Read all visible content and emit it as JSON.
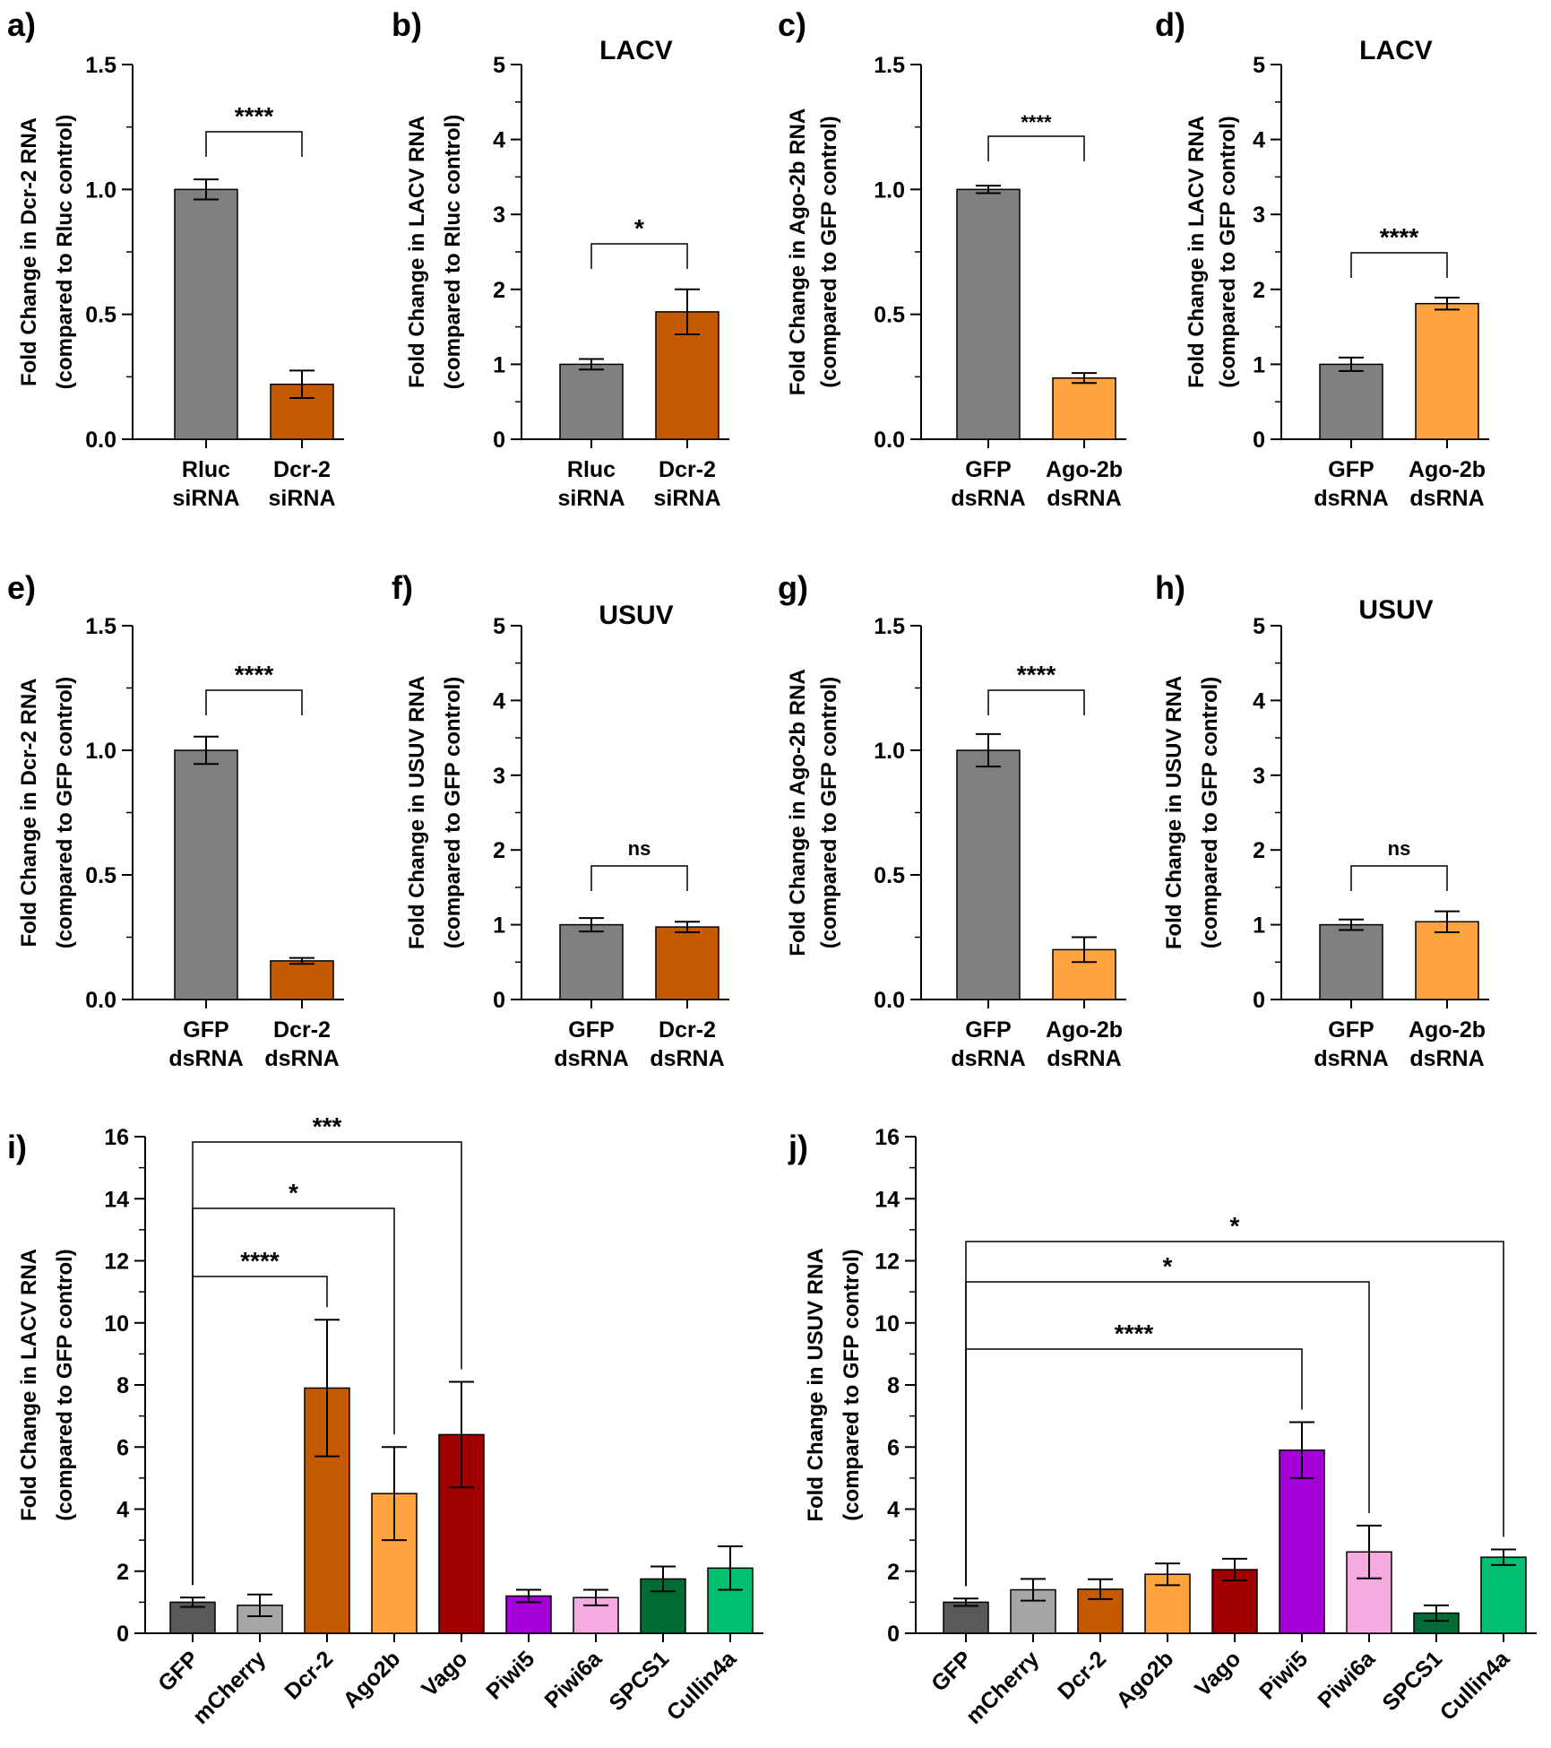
{
  "chart_data": [
    {
      "panel": "a)",
      "type": "bar",
      "title": "",
      "ylabel": [
        "Fold Change in Dcr-2 RNA",
        "(compared to Rluc control)"
      ],
      "ylim": [
        0,
        1.5
      ],
      "ticks": [
        "0.0",
        "0.5",
        "1.0",
        "1.5"
      ],
      "categories": [
        [
          "Rluc",
          "siRNA"
        ],
        [
          "Dcr-2",
          "siRNA"
        ]
      ],
      "values": [
        1.0,
        0.22
      ],
      "errors": [
        0.04,
        0.055
      ],
      "colors": [
        "#808080",
        "#C55A00"
      ],
      "comparisons": [
        {
          "from": 0,
          "to": 1,
          "label": "****"
        }
      ]
    },
    {
      "panel": "b)",
      "type": "bar",
      "title": "LACV",
      "ylabel": [
        "Fold Change in LACV RNA",
        "(compared to Rluc control)"
      ],
      "ylim": [
        0,
        5
      ],
      "ticks": [
        "0",
        "1",
        "2",
        "3",
        "4",
        "5"
      ],
      "categories": [
        [
          "Rluc",
          "siRNA"
        ],
        [
          "Dcr-2",
          "siRNA"
        ]
      ],
      "values": [
        1.0,
        1.7
      ],
      "errors": [
        0.07,
        0.3
      ],
      "colors": [
        "#808080",
        "#C55A00"
      ],
      "comparisons": [
        {
          "from": 0,
          "to": 1,
          "label": "*"
        }
      ]
    },
    {
      "panel": "c)",
      "type": "bar",
      "title": "",
      "ylabel": [
        "Fold Change in Ago-2b RNA",
        "(compared to GFP control)"
      ],
      "ylim": [
        0,
        1.5
      ],
      "ticks": [
        "0.0",
        "0.5",
        "1.0",
        "1.5"
      ],
      "categories": [
        [
          "GFP",
          "dsRNA"
        ],
        [
          "Ago-2b",
          "dsRNA"
        ]
      ],
      "values": [
        1.0,
        0.245
      ],
      "errors": [
        0.015,
        0.02
      ],
      "colors": [
        "#808080",
        "#FFA33F"
      ],
      "comparisons": [
        {
          "from": 0,
          "to": 1,
          "label": "****"
        }
      ]
    },
    {
      "panel": "d)",
      "type": "bar",
      "title": "LACV",
      "ylabel": [
        "Fold Change in LACV RNA",
        "(compared to GFP control)"
      ],
      "ylim": [
        0,
        5
      ],
      "ticks": [
        "0",
        "1",
        "2",
        "3",
        "4",
        "5"
      ],
      "categories": [
        [
          "GFP",
          "dsRNA"
        ],
        [
          "Ago-2b",
          "dsRNA"
        ]
      ],
      "values": [
        1.0,
        1.81
      ],
      "errors": [
        0.09,
        0.08
      ],
      "colors": [
        "#808080",
        "#FFA33F"
      ],
      "comparisons": [
        {
          "from": 0,
          "to": 1,
          "label": "****"
        }
      ]
    },
    {
      "panel": "e)",
      "type": "bar",
      "title": "",
      "ylabel": [
        "Fold Change in Dcr-2 RNA",
        "(compared to GFP control)"
      ],
      "ylim": [
        0,
        1.5
      ],
      "ticks": [
        "0.0",
        "0.5",
        "1.0",
        "1.5"
      ],
      "categories": [
        [
          "GFP",
          "dsRNA"
        ],
        [
          "Dcr-2",
          "dsRNA"
        ]
      ],
      "values": [
        1.0,
        0.155
      ],
      "errors": [
        0.055,
        0.012
      ],
      "colors": [
        "#808080",
        "#C55A00"
      ],
      "comparisons": [
        {
          "from": 0,
          "to": 1,
          "label": "****"
        }
      ]
    },
    {
      "panel": "f)",
      "type": "bar",
      "title": "USUV",
      "ylabel": [
        "Fold Change in USUV RNA",
        "(compared to GFP control)"
      ],
      "ylim": [
        0,
        5
      ],
      "ticks": [
        "0",
        "1",
        "2",
        "3",
        "4",
        "5"
      ],
      "categories": [
        [
          "GFP",
          "dsRNA"
        ],
        [
          "Dcr-2",
          "dsRNA"
        ]
      ],
      "values": [
        1.0,
        0.97
      ],
      "errors": [
        0.09,
        0.07
      ],
      "colors": [
        "#808080",
        "#C55A00"
      ],
      "comparisons": [
        {
          "from": 0,
          "to": 1,
          "label": "ns"
        }
      ]
    },
    {
      "panel": "g)",
      "type": "bar",
      "title": "",
      "ylabel": [
        "Fold Change in Ago-2b RNA",
        "(compared to GFP control)"
      ],
      "ylim": [
        0,
        1.5
      ],
      "ticks": [
        "0.0",
        "0.5",
        "1.0",
        "1.5"
      ],
      "categories": [
        [
          "GFP",
          "dsRNA"
        ],
        [
          "Ago-2b",
          "dsRNA"
        ]
      ],
      "values": [
        1.0,
        0.2
      ],
      "errors": [
        0.065,
        0.05
      ],
      "colors": [
        "#808080",
        "#FFA33F"
      ],
      "comparisons": [
        {
          "from": 0,
          "to": 1,
          "label": "****"
        }
      ]
    },
    {
      "panel": "h)",
      "type": "bar",
      "title": "USUV",
      "ylabel": [
        "Fold Change in USUV RNA",
        "(compared to GFP control)"
      ],
      "ylim": [
        0,
        5
      ],
      "ticks": [
        "0",
        "1",
        "2",
        "3",
        "4",
        "5"
      ],
      "categories": [
        [
          "GFP",
          "dsRNA"
        ],
        [
          "Ago-2b",
          "dsRNA"
        ]
      ],
      "values": [
        1.0,
        1.04
      ],
      "errors": [
        0.07,
        0.14
      ],
      "colors": [
        "#808080",
        "#FFA33F"
      ],
      "comparisons": [
        {
          "from": 0,
          "to": 1,
          "label": "ns"
        }
      ]
    },
    {
      "panel": "i)",
      "type": "bar",
      "title": "",
      "ylabel": [
        "Fold Change in LACV RNA",
        "(compared to GFP control)"
      ],
      "ylim": [
        0,
        16
      ],
      "ticks": [
        "0",
        "2",
        "4",
        "6",
        "8",
        "10",
        "12",
        "14",
        "16"
      ],
      "categories": [
        "GFP",
        "mCherry",
        "Dcr-2",
        "Ago2b",
        "Vago",
        "Piwi5",
        "Piwi6a",
        "SPCS1",
        "Cullin4a"
      ],
      "values": [
        1.0,
        0.9,
        7.9,
        4.5,
        6.4,
        1.2,
        1.15,
        1.75,
        2.1
      ],
      "errors": [
        0.15,
        0.35,
        2.2,
        1.5,
        1.7,
        0.2,
        0.25,
        0.4,
        0.7
      ],
      "colors": [
        "#595959",
        "#A6A6A6",
        "#C55A00",
        "#FFA33F",
        "#A00000",
        "#A600D9",
        "#F5AAE0",
        "#006B35",
        "#00C070"
      ],
      "comparisons": [
        {
          "from": 0,
          "to": 2,
          "label": "****"
        },
        {
          "from": 0,
          "to": 3,
          "label": "*"
        },
        {
          "from": 0,
          "to": 4,
          "label": "***"
        }
      ]
    },
    {
      "panel": "j)",
      "type": "bar",
      "title": "",
      "ylabel": [
        "Fold Change in USUV RNA",
        "(compared to GFP control)"
      ],
      "ylim": [
        0,
        16
      ],
      "ticks": [
        "0",
        "2",
        "4",
        "6",
        "8",
        "10",
        "12",
        "14",
        "16"
      ],
      "categories": [
        "GFP",
        "mCherry",
        "Dcr-2",
        "Ago2b",
        "Vago",
        "Piwi5",
        "Piwi6a",
        "SPCS1",
        "Cullin4a"
      ],
      "values": [
        1.0,
        1.4,
        1.42,
        1.9,
        2.05,
        5.9,
        2.62,
        0.65,
        2.45
      ],
      "errors": [
        0.12,
        0.35,
        0.32,
        0.35,
        0.35,
        0.9,
        0.85,
        0.25,
        0.25
      ],
      "colors": [
        "#595959",
        "#A6A6A6",
        "#C55A00",
        "#FFA33F",
        "#A00000",
        "#A600D9",
        "#F5AAE0",
        "#006B35",
        "#00C070"
      ],
      "comparisons": [
        {
          "from": 0,
          "to": 5,
          "label": "****"
        },
        {
          "from": 0,
          "to": 6,
          "label": "*"
        },
        {
          "from": 0,
          "to": 8,
          "label": "*"
        }
      ]
    }
  ]
}
